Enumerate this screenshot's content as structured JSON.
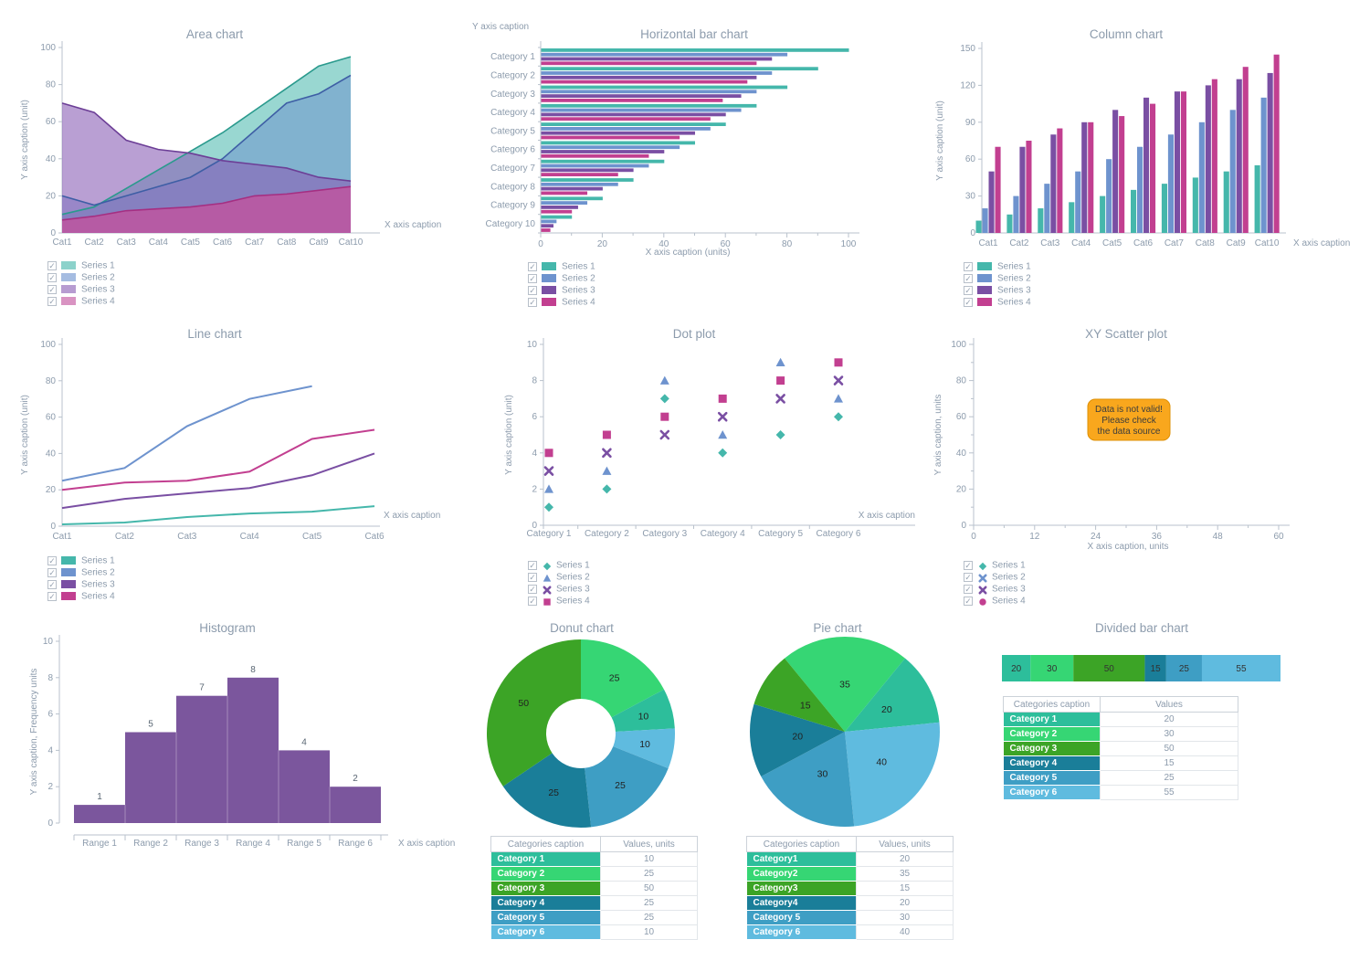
{
  "styles": {
    "title_color": "#8c9bac",
    "axis_color": "#b9c2cc",
    "tick_label_color": "#8c9bac",
    "value_label_color": "#596673",
    "slice_label_color": "#222222",
    "checkbox_check_glyph": "✓"
  },
  "chart_data": [
    {
      "id": "area",
      "type": "area",
      "title": "Area chart",
      "x_axis_caption": "X axis caption",
      "y_axis_caption": "Y axis caption (unit)",
      "ylim": [
        0,
        100
      ],
      "y_ticks": [
        0,
        20,
        40,
        60,
        80,
        100
      ],
      "categories": [
        "Cat1",
        "Cat2",
        "Cat3",
        "Cat4",
        "Cat5",
        "Cat6",
        "Cat7",
        "Cat8",
        "Cat9",
        "Cat10"
      ],
      "legend_position": "bottom-left",
      "series": [
        {
          "name": "Series 1",
          "color": "#45b7ab",
          "line_color": "#2a9a8d",
          "checked": true,
          "values": [
            10,
            14,
            24,
            34,
            44,
            54,
            66,
            78,
            90,
            95
          ]
        },
        {
          "name": "Series 2",
          "color": "#6e93ce",
          "line_color": "#3e5ea5",
          "checked": true,
          "values": [
            20,
            15,
            20,
            25,
            30,
            40,
            55,
            70,
            75,
            85
          ]
        },
        {
          "name": "Series 3",
          "color": "#8a5fb5",
          "line_color": "#6c3e96",
          "checked": true,
          "values": [
            70,
            65,
            50,
            45,
            43,
            39,
            37,
            35,
            30,
            28
          ]
        },
        {
          "name": "Series 4",
          "color": "#c2519c",
          "line_color": "#a52f82",
          "checked": true,
          "values": [
            7,
            9,
            12,
            13,
            14,
            16,
            20,
            21,
            23,
            25
          ]
        }
      ]
    },
    {
      "id": "hbar",
      "type": "hbar",
      "title": "Horizontal bar chart",
      "x_axis_caption": "X axis caption (units)",
      "y_axis_caption": "Y axis caption",
      "xlim": [
        0,
        100
      ],
      "x_ticks": [
        0,
        20,
        40,
        60,
        80,
        100
      ],
      "categories": [
        "Category 1",
        "Category 2",
        "Category 3",
        "Category 4",
        "Category 5",
        "Category 6",
        "Category 7",
        "Category 8",
        "Category 9",
        "Category 10"
      ],
      "legend_position": "bottom-left",
      "series": [
        {
          "name": "Series 1",
          "color": "#45b7ab",
          "checked": true,
          "values": [
            100,
            90,
            80,
            70,
            60,
            50,
            40,
            30,
            20,
            10
          ]
        },
        {
          "name": "Series 2",
          "color": "#6e93ce",
          "checked": true,
          "values": [
            80,
            75,
            70,
            65,
            55,
            45,
            35,
            25,
            15,
            5
          ]
        },
        {
          "name": "Series 3",
          "color": "#7a4fa3",
          "checked": true,
          "values": [
            75,
            70,
            65,
            60,
            50,
            40,
            30,
            20,
            12,
            4
          ]
        },
        {
          "name": "Series 4",
          "color": "#c23f90",
          "checked": true,
          "values": [
            70,
            67,
            59,
            55,
            45,
            35,
            25,
            15,
            10,
            3
          ]
        }
      ]
    },
    {
      "id": "column",
      "type": "column",
      "title": "Column chart",
      "x_axis_caption": "X axis caption",
      "y_axis_caption": "Y axis caption (unit)",
      "ylim": [
        0,
        150
      ],
      "y_ticks": [
        0,
        30,
        60,
        90,
        120,
        150
      ],
      "categories": [
        "Cat1",
        "Cat2",
        "Cat3",
        "Cat4",
        "Cat5",
        "Cat6",
        "Cat7",
        "Cat8",
        "Cat9",
        "Cat10"
      ],
      "legend_position": "bottom-left",
      "series": [
        {
          "name": "Series 1",
          "color": "#45b7ab",
          "checked": true,
          "values": [
            10,
            15,
            20,
            25,
            30,
            35,
            40,
            45,
            50,
            55
          ]
        },
        {
          "name": "Series 2",
          "color": "#6e93ce",
          "checked": true,
          "values": [
            20,
            30,
            40,
            50,
            60,
            70,
            80,
            90,
            100,
            110
          ]
        },
        {
          "name": "Series 3",
          "color": "#7a4fa3",
          "checked": true,
          "values": [
            50,
            70,
            80,
            90,
            100,
            110,
            115,
            120,
            125,
            130
          ]
        },
        {
          "name": "Series 4",
          "color": "#c23f90",
          "checked": true,
          "values": [
            70,
            75,
            85,
            90,
            95,
            105,
            115,
            125,
            135,
            145
          ]
        }
      ]
    },
    {
      "id": "line",
      "type": "line",
      "title": "Line chart",
      "x_axis_caption": "X axis caption",
      "y_axis_caption": "Y axis caption (unit)",
      "ylim": [
        0,
        100
      ],
      "y_ticks": [
        0,
        20,
        40,
        60,
        80,
        100
      ],
      "categories": [
        "Cat1",
        "Cat2",
        "Cat3",
        "Cat4",
        "Cat5",
        "Cat6"
      ],
      "legend_position": "bottom-left",
      "series": [
        {
          "name": "Series 1",
          "color": "#45b7ab",
          "checked": true,
          "values": [
            1,
            2,
            5,
            7,
            8,
            11
          ]
        },
        {
          "name": "Series 2",
          "color": "#6e93ce",
          "checked": true,
          "values": [
            25,
            32,
            55,
            70,
            77,
            null
          ]
        },
        {
          "name": "Series 3",
          "color": "#7a4fa3",
          "checked": true,
          "values": [
            10,
            15,
            18,
            21,
            28,
            40
          ]
        },
        {
          "name": "Series 4",
          "color": "#c23f90",
          "checked": true,
          "values": [
            20,
            24,
            25,
            30,
            48,
            53
          ]
        }
      ]
    },
    {
      "id": "dot",
      "type": "dot",
      "title": "Dot plot",
      "x_axis_caption": "X axis caption",
      "y_axis_caption": "Y axis caption (unit)",
      "ylim": [
        0,
        10
      ],
      "y_ticks": [
        0,
        2,
        4,
        6,
        8,
        10
      ],
      "categories": [
        "Category 1",
        "Category 2",
        "Category 3",
        "Category 4",
        "Category 5",
        "Category 6"
      ],
      "legend_position": "bottom-left",
      "series": [
        {
          "name": "Series 1",
          "color": "#45b7ab",
          "marker": "diamond",
          "checked": true,
          "values": [
            1,
            2,
            7,
            4,
            5,
            6
          ]
        },
        {
          "name": "Series 2",
          "color": "#6e93ce",
          "marker": "triangle",
          "checked": true,
          "values": [
            2,
            3,
            8,
            5,
            9,
            7
          ]
        },
        {
          "name": "Series 3",
          "color": "#7a4fa3",
          "marker": "x",
          "checked": true,
          "values": [
            3,
            4,
            5,
            6,
            7,
            8
          ]
        },
        {
          "name": "Series 4",
          "color": "#c23f90",
          "marker": "square",
          "checked": true,
          "values": [
            4,
            5,
            6,
            7,
            8,
            9
          ]
        }
      ]
    },
    {
      "id": "scatter",
      "type": "scatter",
      "title": "XY Scatter plot",
      "x_axis_caption": "X axis caption, units",
      "y_axis_caption": "Y axis caption, units",
      "xlim": [
        0,
        60
      ],
      "ylim": [
        0,
        100
      ],
      "x_ticks": [
        0,
        12,
        24,
        36,
        48,
        60
      ],
      "y_ticks": [
        0,
        20,
        40,
        60,
        80,
        100
      ],
      "warning": {
        "lines": [
          "Data is not valid!",
          "Please check",
          "the data source"
        ],
        "bg_color": "#f9a71d",
        "border_color": "#de9005",
        "text_color": "#3c3c3c"
      },
      "legend_position": "bottom-left",
      "series": [
        {
          "name": "Series 1",
          "color": "#45b7ab",
          "marker": "diamond",
          "checked": true
        },
        {
          "name": "Series 2",
          "color": "#6e93ce",
          "marker": "x",
          "checked": true
        },
        {
          "name": "Series 3",
          "color": "#7a4fa3",
          "marker": "x",
          "checked": true
        },
        {
          "name": "Series 4",
          "color": "#c23f90",
          "marker": "circle",
          "checked": true
        }
      ]
    },
    {
      "id": "histogram",
      "type": "histogram",
      "title": "Histogram",
      "x_axis_caption": "X axis caption",
      "y_axis_caption": "Y axis caption, Frequency units",
      "ylim": [
        0,
        10
      ],
      "y_ticks": [
        0,
        2,
        4,
        6,
        8,
        10
      ],
      "categories": [
        "Range 1",
        "Range 2",
        "Range 3",
        "Range 4",
        "Range 5",
        "Range 6"
      ],
      "values": [
        1,
        5,
        7,
        8,
        4,
        2
      ],
      "bar_color": "#7b569d"
    },
    {
      "id": "donut",
      "type": "donut",
      "title": "Donut chart",
      "start_angle": 0,
      "slices_clockwise_from_top": [
        {
          "category": "Category 2",
          "value": 25,
          "color": "#36d674"
        },
        {
          "category": "Category 1",
          "value": 10,
          "color": "#2dbe9b"
        },
        {
          "category": "Category 6",
          "value": 10,
          "color": "#5fbbdf"
        },
        {
          "category": "Category 5",
          "value": 25,
          "color": "#3e9ec4"
        },
        {
          "category": "Category 4",
          "value": 25,
          "color": "#1a7e99"
        },
        {
          "category": "Category 3",
          "value": 50,
          "color": "#3ca426"
        }
      ],
      "table": {
        "headers": [
          "Categories caption",
          "Values, units"
        ],
        "rows": [
          {
            "label": "Category 1",
            "color": "#2dbe9b",
            "value": 10
          },
          {
            "label": "Category 2",
            "color": "#36d674",
            "value": 25
          },
          {
            "label": "Category 3",
            "color": "#3ca426",
            "value": 50
          },
          {
            "label": "Category 4",
            "color": "#1a7e99",
            "value": 25
          },
          {
            "label": "Category 5",
            "color": "#3e9ec4",
            "value": 25
          },
          {
            "label": "Category 6",
            "color": "#5fbbdf",
            "value": 10
          }
        ]
      }
    },
    {
      "id": "pie",
      "type": "pie",
      "title": "Pie chart",
      "start_angle": -39.375,
      "slices_clockwise_from_top": [
        {
          "category": "Category2",
          "value": 35,
          "color": "#36d674"
        },
        {
          "category": "Category1",
          "value": 20,
          "color": "#2dbe9b"
        },
        {
          "category": "Category 6",
          "value": 40,
          "color": "#5fbbdf"
        },
        {
          "category": "Category 5",
          "value": 30,
          "color": "#3e9ec4"
        },
        {
          "category": "Category4",
          "value": 20,
          "color": "#1a7e99"
        },
        {
          "category": "Category3",
          "value": 15,
          "color": "#3ca426"
        }
      ],
      "table": {
        "headers": [
          "Categories caption",
          "Values, units"
        ],
        "rows": [
          {
            "label": "Category1",
            "color": "#2dbe9b",
            "value": 20
          },
          {
            "label": "Category2",
            "color": "#36d674",
            "value": 35
          },
          {
            "label": "Category3",
            "color": "#3ca426",
            "value": 15
          },
          {
            "label": "Category4",
            "color": "#1a7e99",
            "value": 20
          },
          {
            "label": "Category 5",
            "color": "#3e9ec4",
            "value": 30
          },
          {
            "label": "Category 6",
            "color": "#5fbbdf",
            "value": 40
          }
        ]
      }
    },
    {
      "id": "divided",
      "type": "divided_bar",
      "title": "Divided bar chart",
      "segments": [
        {
          "category": "Category 1",
          "value": 20,
          "color": "#2dbe9b"
        },
        {
          "category": "Category 2",
          "value": 30,
          "color": "#36d674"
        },
        {
          "category": "Category 3",
          "value": 50,
          "color": "#3ca426"
        },
        {
          "category": "Category 4",
          "value": 15,
          "color": "#1a7e99"
        },
        {
          "category": "Category 5",
          "value": 25,
          "color": "#3e9ec4"
        },
        {
          "category": "Category 6",
          "value": 55,
          "color": "#5fbbdf"
        }
      ],
      "table": {
        "headers": [
          "Categories caption",
          "Values"
        ],
        "rows": [
          {
            "label": "Category 1",
            "color": "#2dbe9b",
            "value": 20
          },
          {
            "label": "Category 2",
            "color": "#36d674",
            "value": 30
          },
          {
            "label": "Category 3",
            "color": "#3ca426",
            "value": 50
          },
          {
            "label": "Category 4",
            "color": "#1a7e99",
            "value": 15
          },
          {
            "label": "Category 5",
            "color": "#3e9ec4",
            "value": 25
          },
          {
            "label": "Category 6",
            "color": "#5fbbdf",
            "value": 55
          }
        ]
      }
    }
  ]
}
